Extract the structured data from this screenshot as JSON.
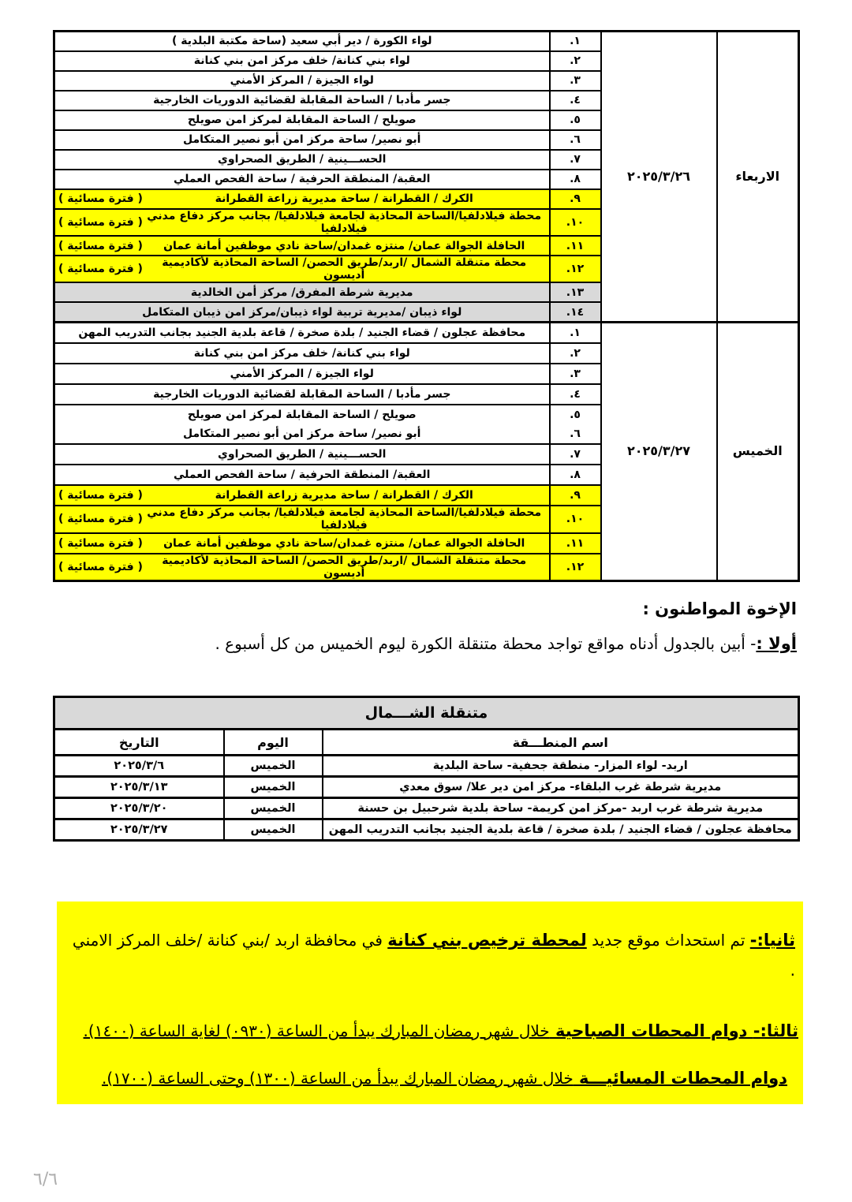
{
  "colors": {
    "highlight_yellow": "#ffff00",
    "row_gray": "#d9d9d9",
    "border_black": "#000000"
  },
  "schedule_table": {
    "blocks": [
      {
        "day": "الاربعاء",
        "date": "٢٠٢٥/٣/٢٦",
        "rows": [
          {
            "n": "١.",
            "text": "لواء الكورة / دير أبي سعيد (ساحة مكتبة البلدية )"
          },
          {
            "n": "٢.",
            "text": "لواء بني كنانة/ خلف مركز امن بني كنانة"
          },
          {
            "n": "٣.",
            "text": "لواء الجيزة / المركز الأمني"
          },
          {
            "n": "٤.",
            "text": "جسر مأدبا / الساحة المقابلة لقضائية الدوريات الخارجية"
          },
          {
            "n": "٥.",
            "text": "صويلح / الساحة المقابلة لمركز امن صويلح"
          },
          {
            "n": "٦.",
            "text": "أبو نصير/ ساحة مركز امن أبو نصير المتكامل"
          },
          {
            "n": "٧.",
            "text": "الحســـينية / الطريق الصحراوي"
          },
          {
            "n": "٨.",
            "text": "العقبة/ المنطقة الحرفية / ساحة الفحص العملي"
          },
          {
            "n": "٩.",
            "text": "الكرك / القطرانة / ساحة مديرية زراعة القطرانة",
            "tag": "( فترة مسائية )",
            "bg": "yellow"
          },
          {
            "n": "١٠.",
            "text": "محطة فيلادلفيا/الساحة المحاذية لجامعة فيلادلفيا/ بجانب مركز دفاع مدني فيلادلفيا",
            "tag": "( فترة مسائية )",
            "bg": "yellow"
          },
          {
            "n": "١١.",
            "text": "الحافلة الجوالة عمان/ منتزه غمدان/ساحة نادي موظفين أمانة عمان",
            "tag": "( فترة مسائية )",
            "bg": "yellow"
          },
          {
            "n": "١٢.",
            "text": "محطة متنقلة الشمال /اربد/طريق الحصن/ الساحة المحاذية لأكاديمية أديسون",
            "tag": "( فترة مسائية )",
            "bg": "yellow"
          },
          {
            "n": "١٣.",
            "text": "مديرية شرطة المفرق/ مركز أمن الخالدية",
            "bg": "gray"
          },
          {
            "n": "١٤.",
            "text": "لواء ذيبان /مديرية تربية لواء ذيبان/مركز امن ذيبان المتكامل",
            "bg": "gray"
          }
        ]
      },
      {
        "day": "الخميس",
        "date": "٢٠٢٥/٣/٢٧",
        "rows": [
          {
            "n": "١.",
            "text": "محافظة عجلون / قضاء الجنيد / بلدة صخرة / قاعة بلدية الجنيد بجانب التدريب المهن"
          },
          {
            "n": "٢.",
            "text": "لواء بني كنانة/ خلف مركز امن بني كنانة"
          },
          {
            "n": "٣.",
            "text": "لواء الجيزة / المركز الأمني"
          },
          {
            "n": "٤.",
            "text": "جسر مأدبا / الساحة المقابلة لقضائية الدوريات الخارجية"
          },
          {
            "n": "٥.",
            "text": "صويلح / الساحة المقابلة لمركز امن صويلح",
            "no_divider_below": true
          },
          {
            "n": "٦.",
            "text": "أبو نصير/ ساحة مركز امن أبو نصير المتكامل"
          },
          {
            "n": "٧.",
            "text": "الحســـينية / الطريق الصحراوي"
          },
          {
            "n": "٨.",
            "text": "العقبة/ المنطقة الحرفية / ساحة الفحص العملي"
          },
          {
            "n": "٩.",
            "text": "الكرك / القطرانة / ساحة مديرية زراعة القطرانة",
            "tag": "( فترة مسائية )",
            "bg": "yellow"
          },
          {
            "n": "١٠.",
            "text": "محطة فيلادلفيا/الساحة المحاذية لجامعة فيلادلفيا/ بجانب مركز دفاع مدني فيلادلفيا",
            "tag": "( فترة مسائية )",
            "bg": "yellow"
          },
          {
            "n": "١١.",
            "text": "الحافلة الجوالة عمان/ منتزه غمدان/ساحة نادي موظفين أمانة عمان",
            "tag": "( فترة مسائية )",
            "bg": "yellow"
          },
          {
            "n": "١٢.",
            "text": "محطة متنقلة الشمال /اربد/طريق الحصن/ الساحة المحاذية لأكاديمية أديسون",
            "tag": "( فترة مسائية )",
            "bg": "yellow"
          }
        ]
      }
    ]
  },
  "intro": {
    "heading": "الإخوة المواطنون :",
    "first_label": "أولا :",
    "first_text": "- أبين بالجدول أدناه مواقع تواجد محطة متنقلة الكورة ليوم الخميس من كل أسبوع ."
  },
  "north_table": {
    "title": "متنقلة الشـــمال",
    "headers": {
      "region": "اسم المنطـــقة",
      "day": "اليوم",
      "date": "التاريخ"
    },
    "rows": [
      {
        "region": "اربد- لواء المزار- منطقة جحفية- ساحة البلدية",
        "day": "الخميس",
        "date": "٢٠٢٥/٣/٦"
      },
      {
        "region": "مديرية شرطة غرب البلقاء- مركز امن دير علا/ سوق معدي",
        "day": "الخميس",
        "date": "٢٠٢٥/٣/١٣"
      },
      {
        "region": "مديرية شرطة غرب اربد -مركز امن كريمة- ساحة بلدية شرحبيل بن حسنة",
        "day": "الخميس",
        "date": "٢٠٢٥/٣/٢٠"
      },
      {
        "region": "محافظة عجلون / قضاء الجنيد / بلدة صخرة / قاعة بلدية الجنيد بجانب التدريب المهن",
        "day": "الخميس",
        "date": "٢٠٢٥/٣/٢٧"
      }
    ]
  },
  "notes": {
    "second_label": "ثانيا:-",
    "second_text_a": "  تم استحداث موقع جديد  ",
    "second_bold": "لمحطة ترخيص بني كنانة",
    "second_text_b": " في محافظة اربد /بني كنانة /خلف المركز الامني .",
    "third_label": "ثالثا:-",
    "third_bold": " دوام المحطات الصباحية ",
    "third_text": "خلال شهر رمضان المبارك يبدأ من الساعة (٠٩٣٠) لغاية الساعة (١٤٠٠).",
    "fourth_bold": "دوام المحطات المسائيـــة ",
    "fourth_text": "خلال شهر رمضان المبارك يبدأ من الساعة (١٣٠٠) وحتى الساعة (١٧٠٠)."
  },
  "page": {
    "number": "٦/٦"
  }
}
